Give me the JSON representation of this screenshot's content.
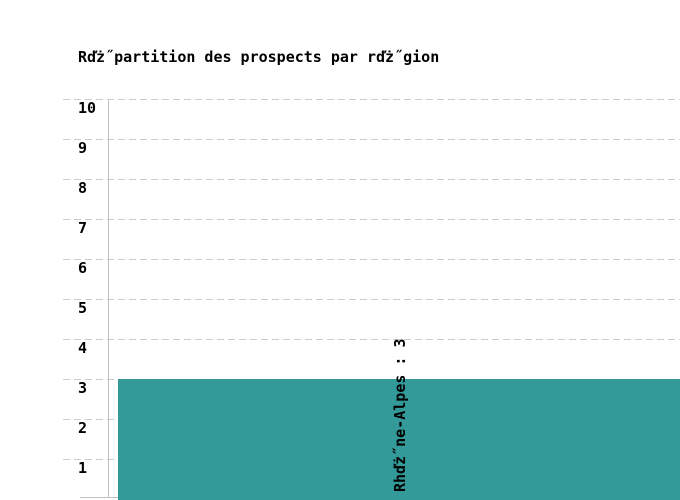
{
  "chart_data": {
    "type": "bar",
    "title": "Rďż˝partition des prospects par rďż˝gion",
    "categories": [
      "Rhďż˝ne-Alpes"
    ],
    "values": [
      3
    ],
    "bar_labels": [
      "Rhďż˝ne-Alpes : 3"
    ],
    "xlabel": "",
    "ylabel": "",
    "ylim": [
      0,
      10
    ],
    "yticks": [
      1,
      2,
      3,
      4,
      5,
      6,
      7,
      8,
      9,
      10
    ],
    "grid": "horizontal-dashed",
    "legend": "none",
    "notes": "single teal bar clipped by right and bottom image edges; value label rotated 90deg inside bar area",
    "colors": {
      "bar": "#339999",
      "grid": "#cccccc",
      "axis": "#c0c0c0",
      "text": "#000000",
      "background": "#ffffff"
    }
  }
}
